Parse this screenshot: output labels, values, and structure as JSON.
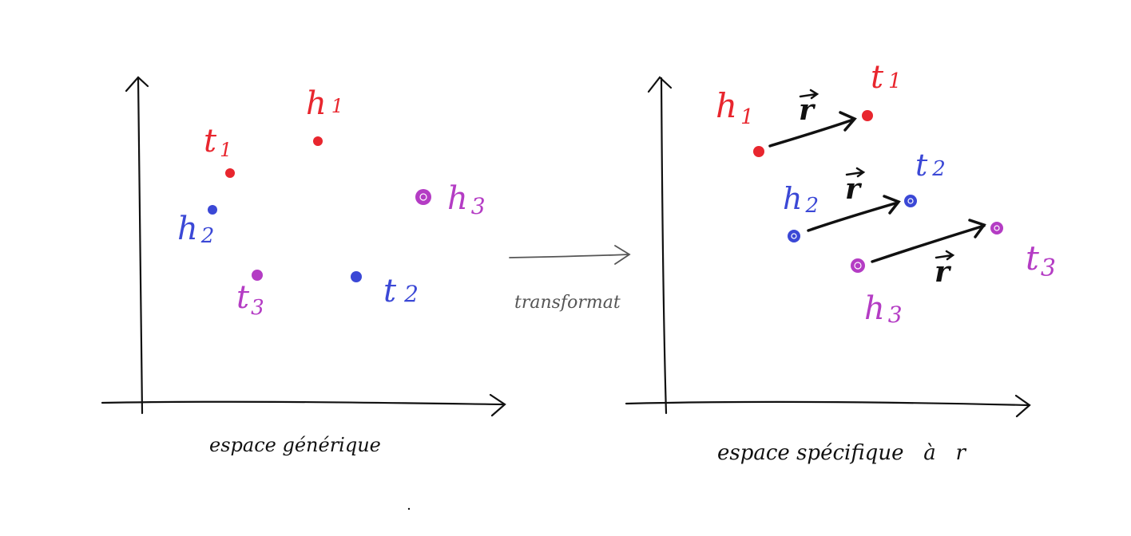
{
  "colors": {
    "pair1": "#e8262e",
    "pair2": "#3b48d6",
    "pair3": "#b43cc4",
    "ink": "#111111",
    "transform_ink": "#555555"
  },
  "left_panel": {
    "caption": "espace générique",
    "points": [
      {
        "label": "h",
        "sub": "1",
        "group": "pair1"
      },
      {
        "label": "t",
        "sub": "1",
        "group": "pair1"
      },
      {
        "label": "h",
        "sub": "2",
        "group": "pair2"
      },
      {
        "label": "t",
        "sub": "2",
        "group": "pair2"
      },
      {
        "label": "h",
        "sub": "3",
        "group": "pair3"
      },
      {
        "label": "t",
        "sub": "3",
        "group": "pair3"
      }
    ]
  },
  "transform": {
    "label": "transformat"
  },
  "right_panel": {
    "caption": "espace spécifique   à   r",
    "relation_label": "r",
    "points": [
      {
        "label": "h",
        "sub": "1",
        "group": "pair1"
      },
      {
        "label": "t",
        "sub": "1",
        "group": "pair1"
      },
      {
        "label": "h",
        "sub": "2",
        "group": "pair2"
      },
      {
        "label": "t",
        "sub": "2",
        "group": "pair2"
      },
      {
        "label": "h",
        "sub": "3",
        "group": "pair3"
      },
      {
        "label": "t",
        "sub": "3",
        "group": "pair3"
      }
    ]
  }
}
